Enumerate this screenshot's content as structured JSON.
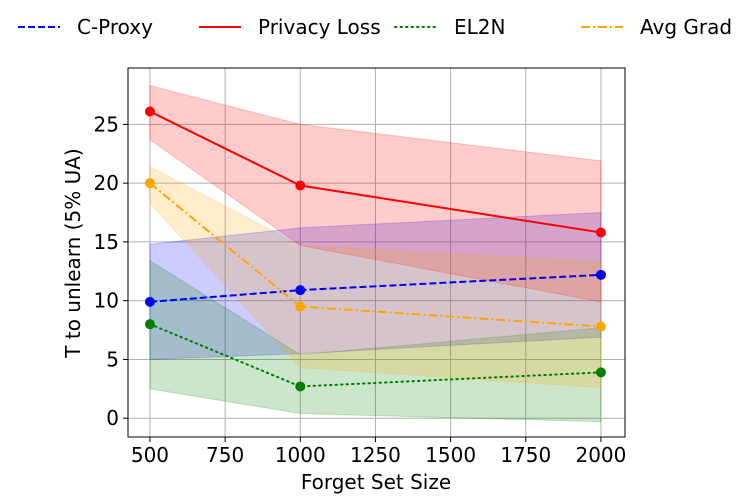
{
  "chart_data": {
    "type": "line",
    "title": "",
    "xlabel": "Forget Set Size",
    "ylabel": "T to unlearn (5% UA)",
    "x": [
      500,
      1000,
      2000
    ],
    "xlim": [
      427,
      2080
    ],
    "ylim": [
      -1.6,
      29.8
    ],
    "xticks": [
      500,
      750,
      1000,
      1250,
      1500,
      1750,
      2000
    ],
    "xtick_labels": [
      "500",
      "750",
      "1000",
      "1250",
      "1500",
      "1750",
      "2000"
    ],
    "yticks": [
      0,
      5,
      10,
      15,
      20,
      25
    ],
    "ytick_labels": [
      "0",
      "5",
      "10",
      "15",
      "20",
      "25"
    ],
    "grid": true,
    "legend_position": "top",
    "series": [
      {
        "name": "C-Proxy",
        "color": "#0000ff",
        "dash": "dashed",
        "values": [
          9.9,
          10.9,
          12.2
        ],
        "lower": [
          5.0,
          5.5,
          6.9
        ],
        "upper": [
          14.8,
          16.2,
          17.5
        ]
      },
      {
        "name": "Privacy Loss",
        "color": "#ff0000",
        "dash": "solid",
        "values": [
          26.1,
          19.8,
          15.8
        ],
        "lower": [
          23.7,
          14.7,
          9.9
        ],
        "upper": [
          28.3,
          25.0,
          21.9
        ]
      },
      {
        "name": "EL2N",
        "color": "#008000",
        "dash": "dotted",
        "values": [
          8.0,
          2.7,
          3.9
        ],
        "lower": [
          2.5,
          0.4,
          -0.3
        ],
        "upper": [
          13.4,
          5.4,
          7.7
        ]
      },
      {
        "name": "Avg Grad",
        "color": "#ffa500",
        "dash": "dashdot",
        "values": [
          20.0,
          9.5,
          7.8
        ],
        "lower": [
          18.3,
          4.3,
          2.6
        ],
        "upper": [
          21.4,
          14.7,
          13.3
        ]
      }
    ]
  }
}
